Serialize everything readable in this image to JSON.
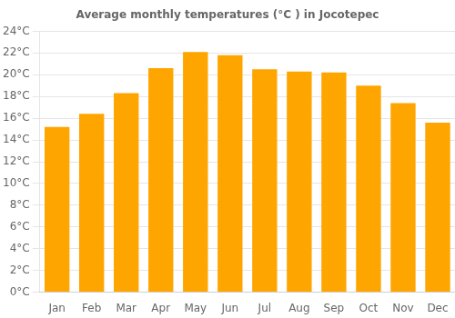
{
  "chart_data": {
    "type": "bar",
    "title": "Average monthly temperatures (°C ) in Jocotepec",
    "categories": [
      "Jan",
      "Feb",
      "Mar",
      "Apr",
      "May",
      "Jun",
      "Jul",
      "Aug",
      "Sep",
      "Oct",
      "Nov",
      "Dec"
    ],
    "values": [
      15.2,
      16.4,
      18.3,
      20.6,
      22.1,
      21.8,
      20.5,
      20.3,
      20.2,
      19.0,
      17.4,
      15.6
    ],
    "color": "#FFA500",
    "ylim": [
      0,
      24
    ],
    "yticks": [
      {
        "value": 0,
        "label": "0°C"
      },
      {
        "value": 2,
        "label": "2°C"
      },
      {
        "value": 4,
        "label": "4°C"
      },
      {
        "value": 6,
        "label": "6°C"
      },
      {
        "value": 8,
        "label": "8°C"
      },
      {
        "value": 10,
        "label": "10°C"
      },
      {
        "value": 12,
        "label": "12°C"
      },
      {
        "value": 14,
        "label": "14°C"
      },
      {
        "value": 16,
        "label": "16°C"
      },
      {
        "value": 18,
        "label": "18°C"
      },
      {
        "value": 20,
        "label": "20°C"
      },
      {
        "value": 22,
        "label": "22°C"
      },
      {
        "value": 24,
        "label": "24°C"
      }
    ],
    "grid": true
  }
}
